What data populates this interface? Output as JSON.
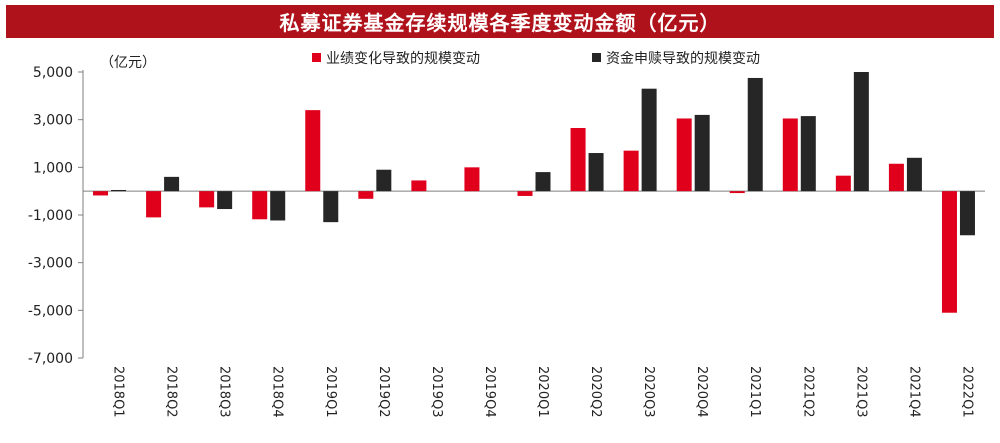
{
  "colors": {
    "title_bg": "#B0121B",
    "series_red": "#E0001B",
    "series_dark": "#262626",
    "axis": "#7F7F7F"
  },
  "chart_data": {
    "type": "bar",
    "title": "私募证券基金存续规模各季度变动金额（亿元）",
    "unit_label": "（亿元）",
    "categories": [
      "2018Q1",
      "2018Q2",
      "2018Q3",
      "2018Q4",
      "2019Q1",
      "2019Q2",
      "2019Q3",
      "2019Q4",
      "2020Q1",
      "2020Q2",
      "2020Q3",
      "2020Q4",
      "2021Q1",
      "2021Q2",
      "2021Q3",
      "2021Q4",
      "2022Q1"
    ],
    "series": [
      {
        "name": "业绩变化导致的规模变动",
        "color": "#E0001B",
        "values": [
          -180,
          -1100,
          -680,
          -1180,
          3400,
          -320,
          450,
          1000,
          -200,
          2650,
          1700,
          3050,
          -80,
          3050,
          650,
          1150,
          -5100
        ]
      },
      {
        "name": "资金申赎导致的规模变动",
        "color": "#262626",
        "values": [
          50,
          600,
          -750,
          -1230,
          -1300,
          900,
          0,
          0,
          800,
          1600,
          4300,
          3200,
          4750,
          3150,
          5000,
          1400,
          -1850
        ]
      }
    ],
    "ylim": [
      -7000,
      5000
    ],
    "yticks": [
      5000,
      3000,
      1000,
      -1000,
      -3000,
      -5000,
      -7000
    ],
    "ytick_labels": [
      "5,000",
      "3,000",
      "1,000",
      "-1,000",
      "-3,000",
      "-5,000",
      "-7,000"
    ],
    "legend_position": "top-center",
    "grid": false
  }
}
